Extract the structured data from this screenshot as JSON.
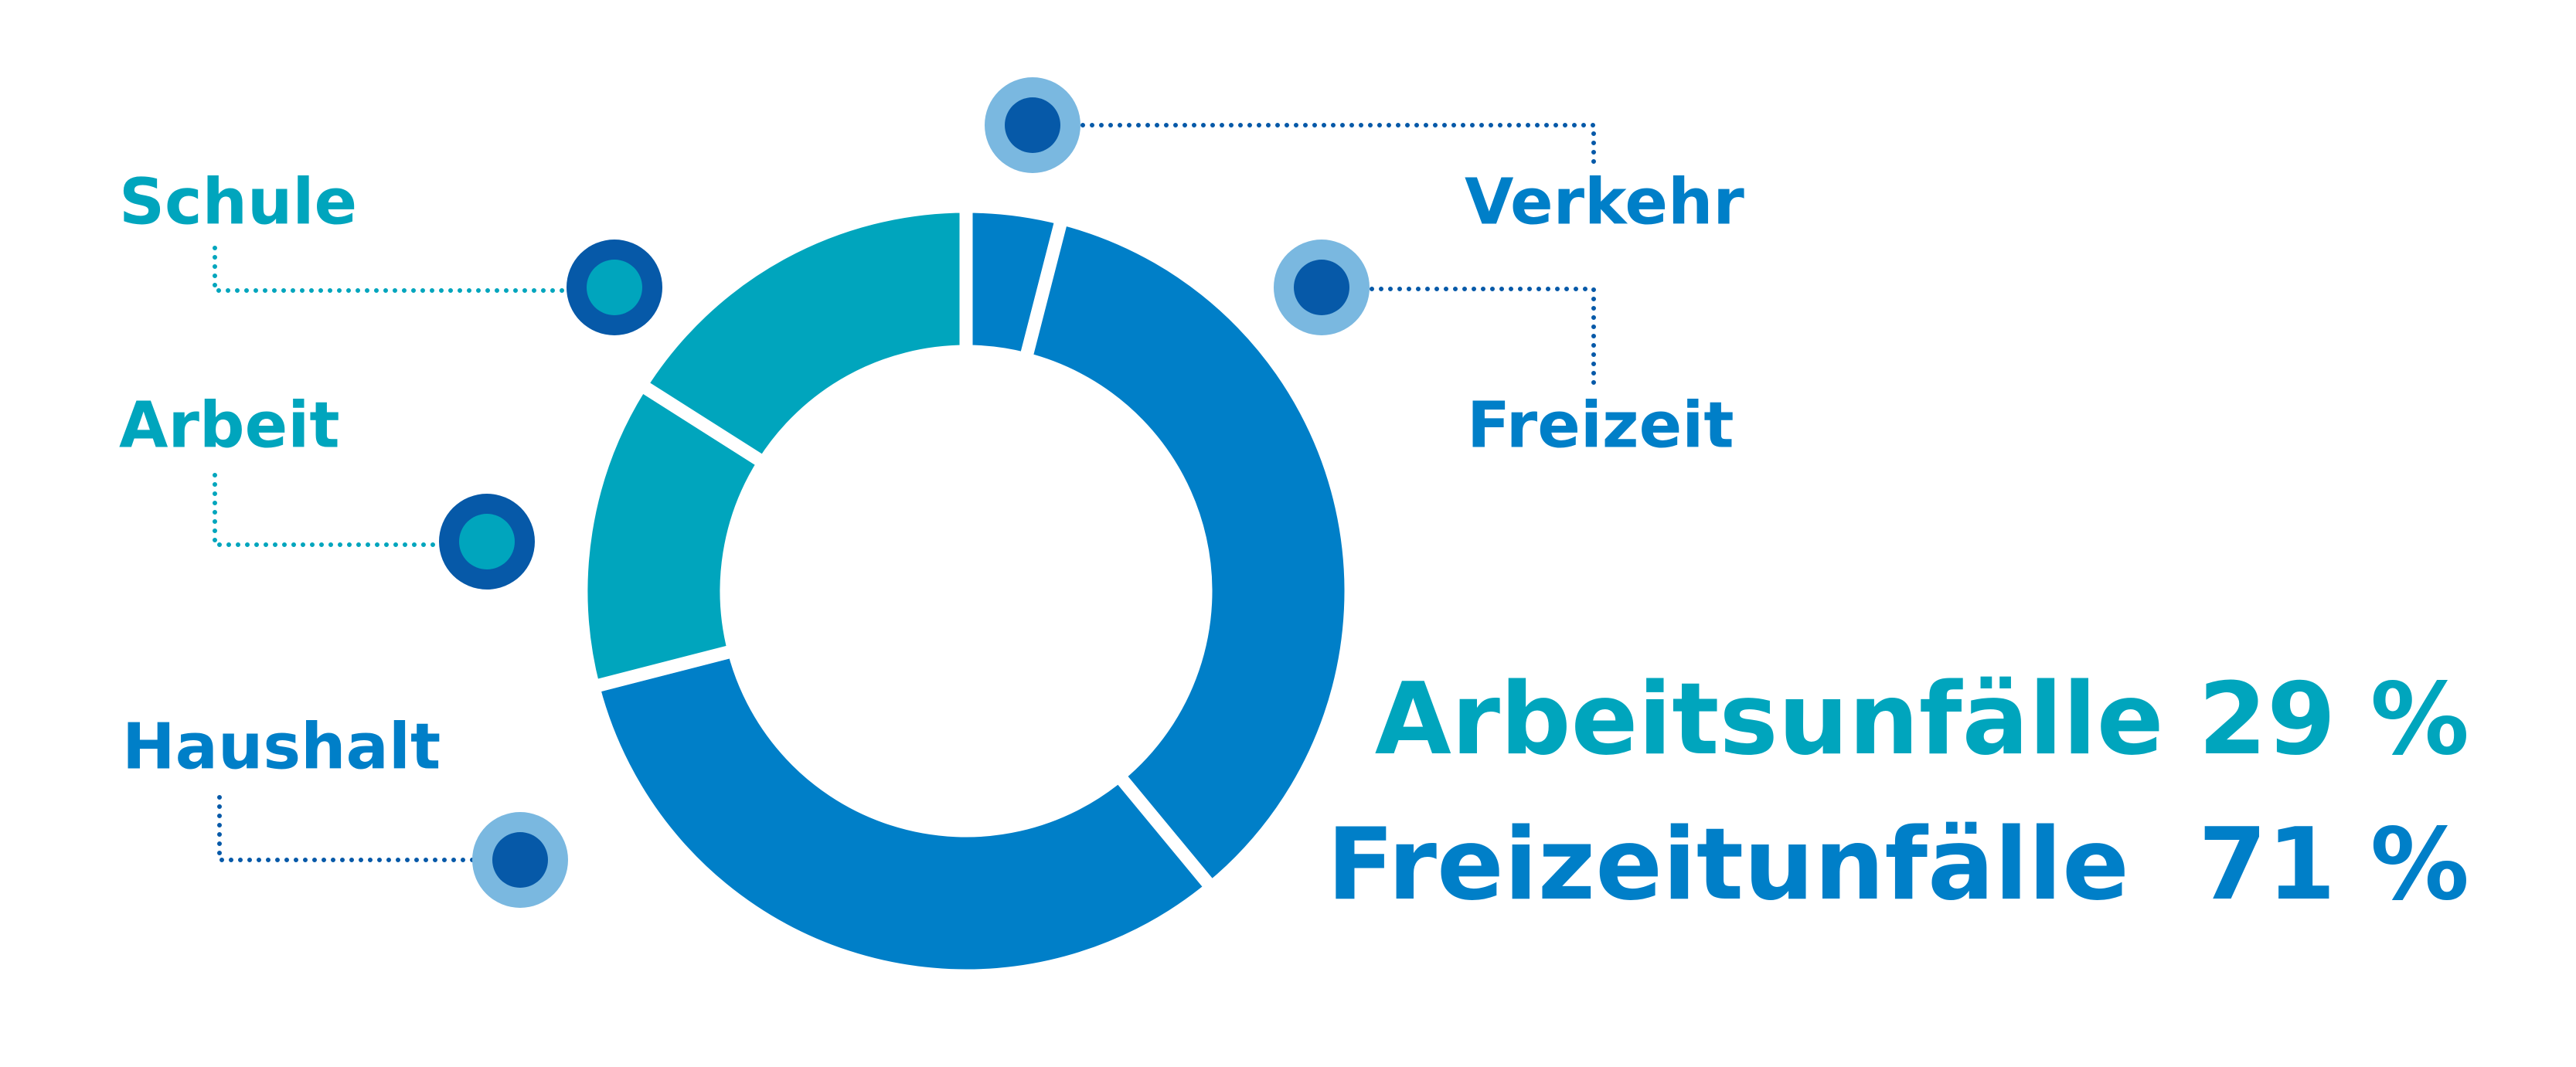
{
  "chart_data": {
    "type": "donut",
    "categories": [
      "Verkehr",
      "Freizeit",
      "Haushalt",
      "Arbeit",
      "Schule"
    ],
    "values": [
      4,
      35,
      32,
      13,
      16
    ],
    "colors": [
      "#007fc8",
      "#007fc8",
      "#007fc8",
      "#00a5bd",
      "#00a5bd"
    ],
    "annotations": [
      {
        "text": "Arbeitsunfälle 29 %",
        "color": "#00a5bd"
      },
      {
        "text": "Freizeitunfälle  71 %",
        "color": "#007fc8"
      }
    ]
  }
}
